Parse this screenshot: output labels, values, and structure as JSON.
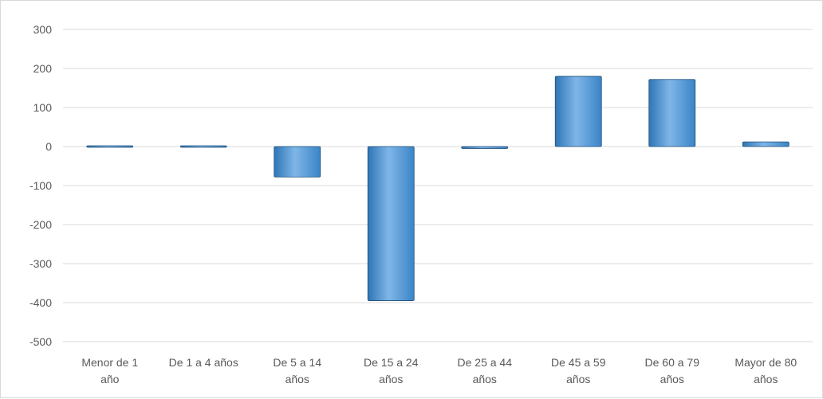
{
  "chart_data": {
    "type": "bar",
    "title": "",
    "xlabel": "",
    "ylabel": "",
    "categories": [
      [
        "Menor de 1",
        "año"
      ],
      [
        "De 1 a 4 años"
      ],
      [
        "De 5 a 14",
        "años"
      ],
      [
        "De 15 a 24",
        "años"
      ],
      [
        "De 25 a 44",
        "años"
      ],
      [
        "De 45 a 59",
        "años"
      ],
      [
        "De 60 a 79",
        "años"
      ],
      [
        "Mayor de 80",
        "años"
      ]
    ],
    "values": [
      0,
      1,
      -78,
      -395,
      -5,
      180,
      172,
      12
    ],
    "ylim": [
      -500,
      300
    ],
    "yticks": [
      300,
      200,
      100,
      0,
      -100,
      -200,
      -300,
      -400,
      -500
    ],
    "ytick_labels": [
      "300",
      "200",
      "100",
      "0",
      "-100",
      "-200",
      "-300",
      "-400",
      "-500"
    ],
    "grid": true,
    "legend": "none",
    "colors": {
      "bar_top": "#a9d0f2",
      "bar_mid": "#5b9bd5",
      "bar_bottom": "#2e75b6",
      "bar_edge": "#1f4e79",
      "gridline": "#d9d9d9",
      "text": "#595959"
    }
  }
}
